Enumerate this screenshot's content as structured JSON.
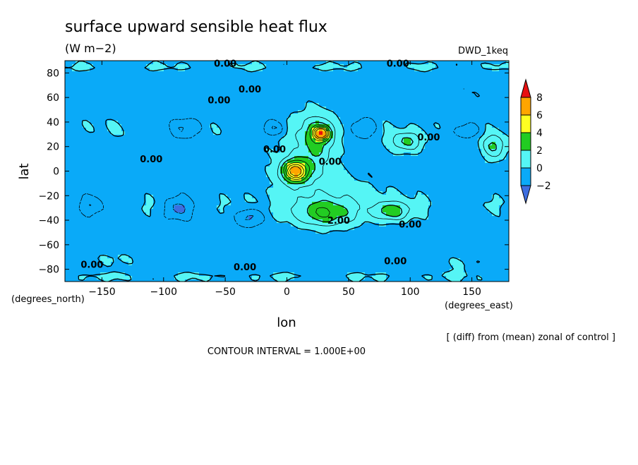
{
  "chart_data": {
    "type": "heatmap",
    "title": "surface upward sensible heat flux",
    "units": "(W m−2)",
    "experiment": "DWD_1keq",
    "xlabel": "lon",
    "ylabel": "lat",
    "x_units_label": "(degrees_east)",
    "y_units_label": "(degrees_north)",
    "xlim": [
      -180,
      180
    ],
    "ylim": [
      -90,
      90
    ],
    "x_ticks": [
      -150,
      -100,
      -50,
      0,
      50,
      100,
      150
    ],
    "y_ticks": [
      -80,
      -60,
      -40,
      -20,
      0,
      20,
      40,
      60,
      80
    ],
    "colorbar": {
      "levels": [
        -2,
        0,
        2,
        4,
        6,
        8
      ],
      "tick_labels": [
        "−2",
        "0",
        "2",
        "4",
        "6",
        "8"
      ],
      "colors": [
        "#3d6ee0",
        "#0aaaf8",
        "#55f5f5",
        "#22cc22",
        "#ffff22",
        "#ffa500",
        "#e81010"
      ]
    },
    "note": "[ (diff) from (mean) zonal of control ]",
    "contour_interval": "CONTOUR INTERVAL = 1.000E+00",
    "contour_labels": [
      {
        "text": "0.00",
        "lon": -50,
        "lat": 88
      },
      {
        "text": "0.00",
        "lon": 90,
        "lat": 88
      },
      {
        "text": "0.00",
        "lon": -30,
        "lat": 67
      },
      {
        "text": "0.00",
        "lon": -55,
        "lat": 58
      },
      {
        "text": "0.00",
        "lon": -10,
        "lat": 18
      },
      {
        "text": "0.00",
        "lon": 35,
        "lat": 8
      },
      {
        "text": "0.00",
        "lon": -110,
        "lat": 10
      },
      {
        "text": "0.00",
        "lon": 115,
        "lat": 28
      },
      {
        "text": "2.00",
        "lon": 42,
        "lat": -40
      },
      {
        "text": "0.00",
        "lon": 100,
        "lat": -43
      },
      {
        "text": "0.00",
        "lon": -158,
        "lat": -76
      },
      {
        "text": "0.00",
        "lon": -34,
        "lat": -78
      },
      {
        "text": "0.00",
        "lon": 88,
        "lat": -73
      }
    ],
    "field_features": [
      {
        "label": "background",
        "value": -0.6
      },
      {
        "kind": "band",
        "lat_center": 35,
        "lat_halfwidth": 14,
        "lon_start": -180,
        "lon_end": 180,
        "value": 0.5
      },
      {
        "kind": "band",
        "lat_center": -28,
        "lat_halfwidth": 14,
        "lon_start": -180,
        "lon_end": 180,
        "value": 0.5
      },
      {
        "kind": "band",
        "lat_center": 85,
        "lat_halfwidth": 6,
        "lon_start": -180,
        "lon_end": 180,
        "value": 0.6
      },
      {
        "kind": "band",
        "lat_center": -86,
        "lat_halfwidth": 6,
        "lon_start": -180,
        "lon_end": 180,
        "value": 0.6
      },
      {
        "kind": "blob",
        "lon": 7,
        "lat": 0,
        "rlon": 10,
        "rlat": 8,
        "value": 6.6
      },
      {
        "kind": "blob",
        "lon": 28,
        "lat": 31,
        "rlon": 6,
        "rlat": 5,
        "value": 6.4
      },
      {
        "kind": "blob",
        "lon": 25,
        "lat": 25,
        "rlon": 14,
        "rlat": 22,
        "value": 2.6
      },
      {
        "kind": "blob",
        "lon": 5,
        "lat": 8,
        "rlon": 22,
        "rlat": 32,
        "value": 0.9
      },
      {
        "kind": "blob",
        "lon": 30,
        "lat": -35,
        "rlon": 22,
        "rlat": 10,
        "value": 2.7
      },
      {
        "kind": "blob",
        "lon": 45,
        "lat": -20,
        "rlon": 40,
        "rlat": 22,
        "value": 0.9
      },
      {
        "kind": "blob",
        "lon": 85,
        "lat": -33,
        "rlon": 14,
        "rlat": 7,
        "value": 2.8
      },
      {
        "kind": "blob",
        "lon": 97,
        "lat": 24,
        "rlon": 12,
        "rlat": 8,
        "value": 2.8
      },
      {
        "kind": "blob",
        "lon": 168,
        "lat": 20,
        "rlon": 10,
        "rlat": 10,
        "value": 2.7
      },
      {
        "kind": "blob",
        "lon": -82,
        "lat": 35,
        "rlon": 12,
        "rlat": 8,
        "value": -2.2
      },
      {
        "kind": "blob",
        "lon": -10,
        "lat": 35,
        "rlon": 11,
        "rlat": 7,
        "value": -2.2
      },
      {
        "kind": "blob",
        "lon": 62,
        "lat": 35,
        "rlon": 10,
        "rlat": 8,
        "value": -2.2
      },
      {
        "kind": "blob",
        "lon": 145,
        "lat": 33,
        "rlon": 11,
        "rlat": 6,
        "value": -2.0
      },
      {
        "kind": "blob",
        "lon": -88,
        "lat": -30,
        "rlon": 12,
        "rlat": 9,
        "value": -2.2
      },
      {
        "kind": "blob",
        "lon": -160,
        "lat": -28,
        "rlon": 10,
        "rlat": 8,
        "value": -2.0
      },
      {
        "kind": "blob",
        "lon": -30,
        "lat": -37,
        "rlon": 10,
        "rlat": 7,
        "value": -2.2
      },
      {
        "kind": "blob",
        "lon": -140,
        "lat": -72,
        "rlon": 20,
        "rlat": 6,
        "value": 0.8
      },
      {
        "kind": "blob",
        "lon": 140,
        "lat": -75,
        "rlon": 20,
        "rlat": 6,
        "value": 0.7
      },
      {
        "kind": "blob",
        "lon": 150,
        "lat": 65,
        "rlon": 18,
        "rlat": 10,
        "value": 0.6
      }
    ]
  }
}
